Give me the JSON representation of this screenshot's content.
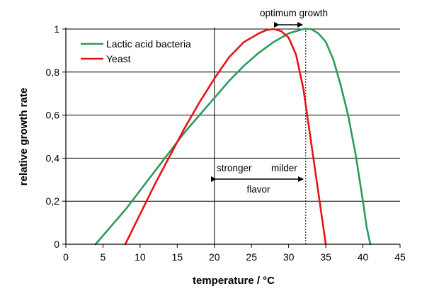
{
  "chart_data": {
    "type": "line",
    "title": "",
    "xlabel": "temperature / °C",
    "ylabel": "relative growth rate",
    "xlim": [
      0,
      45
    ],
    "ylim": [
      0,
      1
    ],
    "x_ticks": [
      "0",
      "5",
      "10",
      "15",
      "20",
      "25",
      "30",
      "35",
      "40",
      "45"
    ],
    "y_ticks": [
      "0",
      "0,2",
      "0,4",
      "0,6",
      "0,8",
      "1"
    ],
    "grid": "horizontal",
    "legend_position": "top-left",
    "series": [
      {
        "name": "Lactic acid bacteria",
        "color": "#2e9b5a",
        "points": [
          [
            4,
            0
          ],
          [
            6,
            0.08
          ],
          [
            8,
            0.16
          ],
          [
            10,
            0.25
          ],
          [
            12,
            0.34
          ],
          [
            14,
            0.43
          ],
          [
            16,
            0.52
          ],
          [
            18,
            0.6
          ],
          [
            20,
            0.68
          ],
          [
            22,
            0.76
          ],
          [
            24,
            0.83
          ],
          [
            26,
            0.89
          ],
          [
            28,
            0.94
          ],
          [
            30,
            0.98
          ],
          [
            32,
            1.0
          ],
          [
            33,
            1.0
          ],
          [
            34,
            0.98
          ],
          [
            35,
            0.94
          ],
          [
            36,
            0.86
          ],
          [
            37,
            0.74
          ],
          [
            38,
            0.6
          ],
          [
            39,
            0.42
          ],
          [
            40,
            0.2
          ],
          [
            40.5,
            0.08
          ],
          [
            41,
            0
          ]
        ]
      },
      {
        "name": "Yeast",
        "color": "#e8121a",
        "points": [
          [
            8,
            0
          ],
          [
            10,
            0.14
          ],
          [
            12,
            0.28
          ],
          [
            14,
            0.41
          ],
          [
            16,
            0.54
          ],
          [
            18,
            0.66
          ],
          [
            20,
            0.77
          ],
          [
            22,
            0.87
          ],
          [
            24,
            0.94
          ],
          [
            26,
            0.98
          ],
          [
            27,
            0.995
          ],
          [
            28,
            1.0
          ],
          [
            29,
            0.99
          ],
          [
            30,
            0.96
          ],
          [
            31,
            0.88
          ],
          [
            32,
            0.72
          ],
          [
            33,
            0.48
          ],
          [
            34,
            0.24
          ],
          [
            35,
            0
          ]
        ]
      }
    ],
    "reference_lines": [
      {
        "x": 20,
        "style": "solid"
      },
      {
        "x": 32.3,
        "style": "dashed"
      }
    ],
    "annotations": {
      "optimum_label": "optimum growth",
      "stronger_label": "stronger",
      "milder_label": "milder",
      "flavor_label": "flavor"
    }
  }
}
